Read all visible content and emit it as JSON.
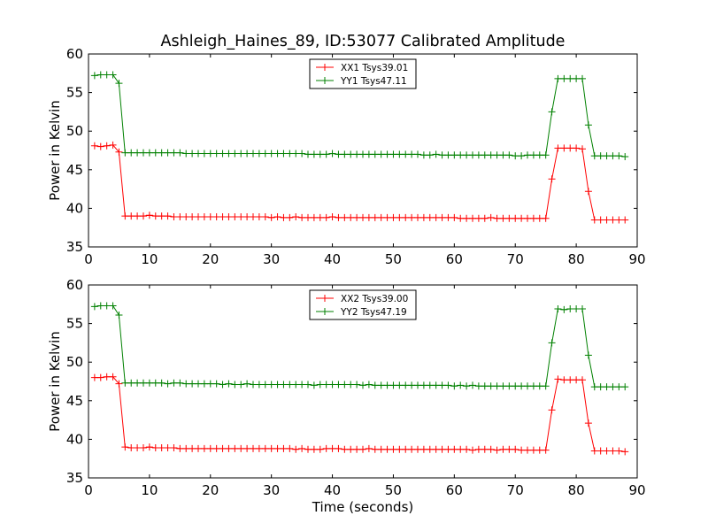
{
  "chart_data": [
    {
      "type": "line",
      "title": "Ashleigh_Haines_89, ID:53077 Calibrated Amplitude",
      "xlabel": "",
      "ylabel": "Power in Kelvin",
      "xlim": [
        0,
        90
      ],
      "ylim": [
        35,
        60
      ],
      "xticks": [
        0,
        10,
        20,
        30,
        40,
        50,
        60,
        70,
        80,
        90
      ],
      "yticks": [
        35,
        40,
        45,
        50,
        55,
        60
      ],
      "grid": false,
      "legend_position": "top-center",
      "series": [
        {
          "name": "XX1 Tsys39.01",
          "color": "#ff0000",
          "x": [
            1,
            2,
            3,
            4,
            5,
            6,
            7,
            8,
            9,
            10,
            11,
            12,
            13,
            14,
            15,
            16,
            17,
            18,
            19,
            20,
            21,
            22,
            23,
            24,
            25,
            26,
            27,
            28,
            29,
            30,
            31,
            32,
            33,
            34,
            35,
            36,
            37,
            38,
            39,
            40,
            41,
            42,
            43,
            44,
            45,
            46,
            47,
            48,
            49,
            50,
            51,
            52,
            53,
            54,
            55,
            56,
            57,
            58,
            59,
            60,
            61,
            62,
            63,
            64,
            65,
            66,
            67,
            68,
            69,
            70,
            71,
            72,
            73,
            74,
            75,
            76,
            77,
            78,
            79,
            80,
            81,
            82,
            83,
            84,
            85,
            86,
            87,
            88
          ],
          "y": [
            48.1,
            48.0,
            48.1,
            48.2,
            47.3,
            39.0,
            39.0,
            39.0,
            39.0,
            39.1,
            39.0,
            39.0,
            39.0,
            38.9,
            38.9,
            38.9,
            38.9,
            38.9,
            38.9,
            38.9,
            38.9,
            38.9,
            38.9,
            38.9,
            38.9,
            38.9,
            38.9,
            38.9,
            38.9,
            38.8,
            38.9,
            38.8,
            38.8,
            38.9,
            38.8,
            38.8,
            38.8,
            38.8,
            38.8,
            38.9,
            38.8,
            38.8,
            38.8,
            38.8,
            38.8,
            38.8,
            38.8,
            38.8,
            38.8,
            38.8,
            38.8,
            38.8,
            38.8,
            38.8,
            38.8,
            38.8,
            38.8,
            38.8,
            38.8,
            38.8,
            38.7,
            38.7,
            38.7,
            38.7,
            38.7,
            38.8,
            38.7,
            38.7,
            38.7,
            38.7,
            38.7,
            38.7,
            38.7,
            38.7,
            38.7,
            43.8,
            47.8,
            47.8,
            47.8,
            47.8,
            47.7,
            42.2,
            38.5,
            38.5,
            38.5,
            38.5,
            38.5,
            38.5
          ]
        },
        {
          "name": "YY1 Tsys47.11",
          "color": "#008000",
          "x": [
            1,
            2,
            3,
            4,
            5,
            6,
            7,
            8,
            9,
            10,
            11,
            12,
            13,
            14,
            15,
            16,
            17,
            18,
            19,
            20,
            21,
            22,
            23,
            24,
            25,
            26,
            27,
            28,
            29,
            30,
            31,
            32,
            33,
            34,
            35,
            36,
            37,
            38,
            39,
            40,
            41,
            42,
            43,
            44,
            45,
            46,
            47,
            48,
            49,
            50,
            51,
            52,
            53,
            54,
            55,
            56,
            57,
            58,
            59,
            60,
            61,
            62,
            63,
            64,
            65,
            66,
            67,
            68,
            69,
            70,
            71,
            72,
            73,
            74,
            75,
            76,
            77,
            78,
            79,
            80,
            81,
            82,
            83,
            84,
            85,
            86,
            87,
            88
          ],
          "y": [
            57.2,
            57.3,
            57.3,
            57.3,
            56.2,
            47.2,
            47.2,
            47.2,
            47.2,
            47.2,
            47.2,
            47.2,
            47.2,
            47.2,
            47.2,
            47.1,
            47.1,
            47.1,
            47.1,
            47.1,
            47.1,
            47.1,
            47.1,
            47.1,
            47.1,
            47.1,
            47.1,
            47.1,
            47.1,
            47.1,
            47.1,
            47.1,
            47.1,
            47.1,
            47.1,
            47.0,
            47.0,
            47.0,
            47.0,
            47.1,
            47.0,
            47.0,
            47.0,
            47.0,
            47.0,
            47.0,
            47.0,
            47.0,
            47.0,
            47.0,
            47.0,
            47.0,
            47.0,
            47.0,
            46.9,
            46.9,
            47.0,
            46.9,
            46.9,
            46.9,
            46.9,
            46.9,
            46.9,
            46.9,
            46.9,
            46.9,
            46.9,
            46.9,
            46.9,
            46.8,
            46.8,
            46.9,
            46.9,
            46.9,
            46.9,
            52.5,
            56.8,
            56.8,
            56.8,
            56.8,
            56.8,
            50.8,
            46.8,
            46.8,
            46.8,
            46.8,
            46.8,
            46.7
          ]
        }
      ]
    },
    {
      "type": "line",
      "title": "",
      "xlabel": "Time (seconds)",
      "ylabel": "Power in Kelvin",
      "xlim": [
        0,
        90
      ],
      "ylim": [
        35,
        60
      ],
      "xticks": [
        0,
        10,
        20,
        30,
        40,
        50,
        60,
        70,
        80,
        90
      ],
      "yticks": [
        35,
        40,
        45,
        50,
        55,
        60
      ],
      "grid": false,
      "legend_position": "top-center",
      "series": [
        {
          "name": "XX2 Tsys39.00",
          "color": "#ff0000",
          "x": [
            1,
            2,
            3,
            4,
            5,
            6,
            7,
            8,
            9,
            10,
            11,
            12,
            13,
            14,
            15,
            16,
            17,
            18,
            19,
            20,
            21,
            22,
            23,
            24,
            25,
            26,
            27,
            28,
            29,
            30,
            31,
            32,
            33,
            34,
            35,
            36,
            37,
            38,
            39,
            40,
            41,
            42,
            43,
            44,
            45,
            46,
            47,
            48,
            49,
            50,
            51,
            52,
            53,
            54,
            55,
            56,
            57,
            58,
            59,
            60,
            61,
            62,
            63,
            64,
            65,
            66,
            67,
            68,
            69,
            70,
            71,
            72,
            73,
            74,
            75,
            76,
            77,
            78,
            79,
            80,
            81,
            82,
            83,
            84,
            85,
            86,
            87,
            88
          ],
          "y": [
            48.0,
            48.0,
            48.1,
            48.1,
            47.2,
            39.0,
            38.9,
            38.9,
            38.9,
            39.0,
            38.9,
            38.9,
            38.9,
            38.9,
            38.8,
            38.8,
            38.8,
            38.8,
            38.8,
            38.8,
            38.8,
            38.8,
            38.8,
            38.8,
            38.8,
            38.8,
            38.8,
            38.8,
            38.8,
            38.8,
            38.8,
            38.8,
            38.8,
            38.7,
            38.8,
            38.7,
            38.7,
            38.7,
            38.8,
            38.8,
            38.8,
            38.7,
            38.7,
            38.7,
            38.7,
            38.8,
            38.7,
            38.7,
            38.7,
            38.7,
            38.7,
            38.7,
            38.7,
            38.7,
            38.7,
            38.7,
            38.7,
            38.7,
            38.7,
            38.7,
            38.7,
            38.7,
            38.6,
            38.7,
            38.7,
            38.7,
            38.6,
            38.7,
            38.7,
            38.7,
            38.6,
            38.6,
            38.6,
            38.6,
            38.6,
            43.8,
            47.8,
            47.7,
            47.7,
            47.7,
            47.7,
            42.1,
            38.5,
            38.5,
            38.5,
            38.5,
            38.5,
            38.4
          ]
        },
        {
          "name": "YY2 Tsys47.19",
          "color": "#008000",
          "x": [
            1,
            2,
            3,
            4,
            5,
            6,
            7,
            8,
            9,
            10,
            11,
            12,
            13,
            14,
            15,
            16,
            17,
            18,
            19,
            20,
            21,
            22,
            23,
            24,
            25,
            26,
            27,
            28,
            29,
            30,
            31,
            32,
            33,
            34,
            35,
            36,
            37,
            38,
            39,
            40,
            41,
            42,
            43,
            44,
            45,
            46,
            47,
            48,
            49,
            50,
            51,
            52,
            53,
            54,
            55,
            56,
            57,
            58,
            59,
            60,
            61,
            62,
            63,
            64,
            65,
            66,
            67,
            68,
            69,
            70,
            71,
            72,
            73,
            74,
            75,
            76,
            77,
            78,
            79,
            80,
            81,
            82,
            83,
            84,
            85,
            86,
            87,
            88
          ],
          "y": [
            57.2,
            57.3,
            57.3,
            57.3,
            56.1,
            47.3,
            47.3,
            47.3,
            47.3,
            47.3,
            47.3,
            47.3,
            47.2,
            47.3,
            47.3,
            47.2,
            47.2,
            47.2,
            47.2,
            47.2,
            47.2,
            47.1,
            47.2,
            47.1,
            47.1,
            47.2,
            47.1,
            47.1,
            47.1,
            47.1,
            47.1,
            47.1,
            47.1,
            47.1,
            47.1,
            47.1,
            47.0,
            47.1,
            47.1,
            47.1,
            47.1,
            47.1,
            47.1,
            47.1,
            47.0,
            47.1,
            47.0,
            47.0,
            47.0,
            47.0,
            47.0,
            47.0,
            47.0,
            47.0,
            47.0,
            47.0,
            47.0,
            47.0,
            47.0,
            46.9,
            47.0,
            46.9,
            47.0,
            46.9,
            46.9,
            46.9,
            46.9,
            46.9,
            46.9,
            46.9,
            46.9,
            46.9,
            46.9,
            46.9,
            46.9,
            52.5,
            56.9,
            56.8,
            56.9,
            56.9,
            56.9,
            50.9,
            46.8,
            46.8,
            46.8,
            46.8,
            46.8,
            46.8
          ]
        }
      ]
    }
  ]
}
